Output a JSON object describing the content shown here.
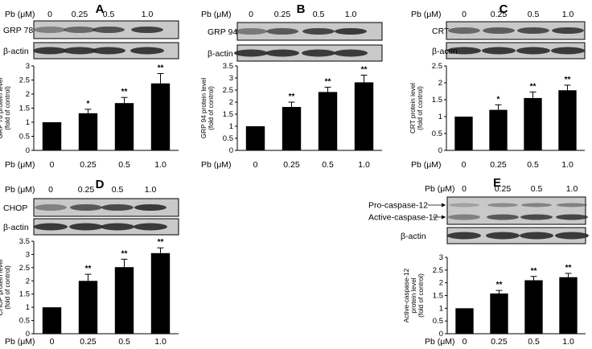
{
  "conc_label": "Pb (μM)",
  "conc_values": [
    "0",
    "0.25",
    "0.5",
    "1.0"
  ],
  "actin_label": "β-actin",
  "colors": {
    "bar": "#000000",
    "blot_bg": "#c9c9c9",
    "band": "#2a2a2a"
  },
  "chart_data": [
    {
      "panel": "A",
      "type": "bar",
      "blot_label": "GRP 78",
      "categories": [
        "0",
        "0.25",
        "0.5",
        "1.0"
      ],
      "values": [
        1.0,
        1.32,
        1.68,
        2.38
      ],
      "errors": [
        0.0,
        0.14,
        0.2,
        0.35
      ],
      "significance": [
        "",
        "*",
        "**",
        "**"
      ],
      "ylabel": [
        "GRP 78 protein level",
        "(fold of control)"
      ],
      "xlabel": "Pb (μM)",
      "ylim": [
        0,
        3
      ],
      "yticks": [
        "0",
        "0.5",
        "1",
        "1.5",
        "2",
        "2.5",
        "3"
      ],
      "band_intensity": [
        0.45,
        0.6,
        0.75,
        0.85
      ]
    },
    {
      "panel": "B",
      "type": "bar",
      "blot_label": "GRP 94",
      "categories": [
        "0",
        "0.25",
        "0.5",
        "1.0"
      ],
      "values": [
        1.0,
        1.8,
        2.42,
        2.82
      ],
      "errors": [
        0.0,
        0.2,
        0.2,
        0.3
      ],
      "significance": [
        "",
        "**",
        "**",
        "**"
      ],
      "ylabel": [
        "GRP 94 protein level",
        "(fold of control)"
      ],
      "xlabel": "Pb (μM)",
      "ylim": [
        0,
        3.5
      ],
      "yticks": [
        "0",
        "0.5",
        "1",
        "1.5",
        "2",
        "2.5",
        "3",
        "3.5"
      ],
      "band_intensity": [
        0.5,
        0.7,
        0.82,
        0.9
      ]
    },
    {
      "panel": "C",
      "type": "bar",
      "blot_label": "CRT",
      "categories": [
        "0",
        "0.25",
        "0.5",
        "1.0"
      ],
      "values": [
        1.0,
        1.2,
        1.55,
        1.78
      ],
      "errors": [
        0.0,
        0.15,
        0.18,
        0.15
      ],
      "significance": [
        "",
        "*",
        "**",
        "**"
      ],
      "ylabel": [
        "CRT protein level",
        "(fold of control)"
      ],
      "xlabel": "Pb (μM)",
      "ylim": [
        0,
        2.5
      ],
      "yticks": [
        "0",
        "0.5",
        "1",
        "1.5",
        "2",
        "2.5"
      ],
      "band_intensity": [
        0.6,
        0.68,
        0.78,
        0.85
      ]
    },
    {
      "panel": "D",
      "type": "bar",
      "blot_label": "CHOP",
      "categories": [
        "0",
        "0.25",
        "0.5",
        "1.0"
      ],
      "values": [
        1.0,
        2.0,
        2.52,
        3.05
      ],
      "errors": [
        0.0,
        0.25,
        0.3,
        0.2
      ],
      "significance": [
        "",
        "**",
        "**",
        "**"
      ],
      "ylabel": [
        "CHOP protein level",
        "(fold of control)"
      ],
      "xlabel": "Pb (μM)",
      "ylim": [
        0,
        3.5
      ],
      "yticks": [
        "0",
        "0.5",
        "1",
        "1.5",
        "2",
        "2.5",
        "3",
        "3.5"
      ],
      "band_intensity": [
        0.45,
        0.7,
        0.8,
        0.9
      ]
    },
    {
      "panel": "E",
      "type": "bar",
      "blot_labels": [
        "Pro-caspase-12",
        "Active-caspase-12"
      ],
      "categories": [
        "0",
        "0.25",
        "0.5",
        "1.0"
      ],
      "values": [
        1.0,
        1.58,
        2.1,
        2.22
      ],
      "errors": [
        0.0,
        0.12,
        0.15,
        0.15
      ],
      "significance": [
        "",
        "**",
        "**",
        "**"
      ],
      "ylabel": [
        "Active-caspase-12",
        "protein level",
        "(fold of control)"
      ],
      "xlabel": "Pb (μM)",
      "ylim": [
        0,
        3
      ],
      "yticks": [
        "0",
        "0.5",
        "1",
        "1.5",
        "2",
        "2.5",
        "3"
      ],
      "band_intensity": [
        0.45,
        0.7,
        0.8,
        0.82
      ]
    }
  ]
}
